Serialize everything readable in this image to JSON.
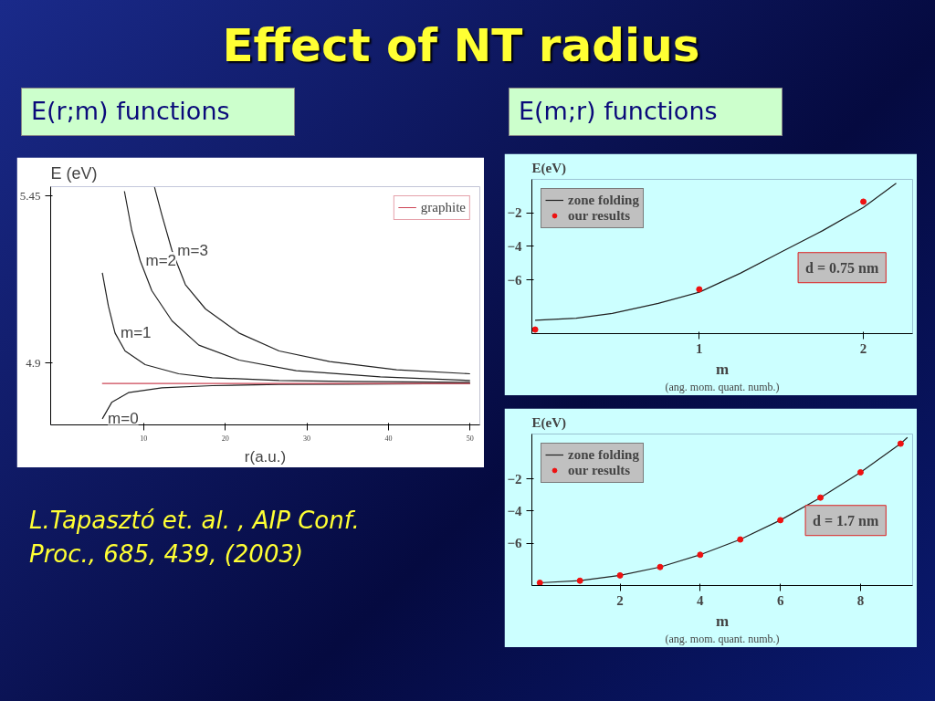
{
  "chart_data": [
    {
      "type": "line",
      "title": "Effect of NT radius",
      "subtitle": "E(r;m) functions",
      "xlabel": "r(a.u.)",
      "ylabel": "E (eV)",
      "xlim": [
        -1.4,
        51.2
      ],
      "ylim": [
        4.697,
        5.48
      ],
      "xticks": [
        10,
        20,
        30,
        40,
        50
      ],
      "yticks": [
        5.45,
        4.9
      ],
      "grid": false,
      "legend": "top right",
      "marker": "none",
      "line_style": "solid",
      "series": [
        {
          "color": "#222222",
          "x": [
            4.93,
            6.08,
            8.13,
            12.24,
            18.4,
            26.6,
            34.8,
            50
          ],
          "values": [
            4.717,
            4.771,
            4.803,
            4.819,
            4.826,
            4.83,
            4.831,
            4.833
          ]
        },
        {
          "color": "#222222",
          "x": [
            4.93,
            5.67,
            6.49,
            7.72,
            10.18,
            14.29,
            18.4,
            26.6,
            34.8,
            50
          ],
          "values": [
            5.197,
            5.088,
            4.999,
            4.94,
            4.895,
            4.865,
            4.852,
            4.843,
            4.84,
            4.837
          ]
        },
        {
          "color": "#222222",
          "x": [
            7.64,
            8.54,
            9.57,
            11.0,
            13.47,
            16.76,
            21.7,
            28.7,
            39.0,
            50
          ],
          "values": [
            5.465,
            5.336,
            5.237,
            5.138,
            5.039,
            4.959,
            4.91,
            4.875,
            4.855,
            4.843
          ]
        },
        {
          "color": "#222222",
          "x": [
            11.33,
            12.24,
            13.47,
            15.11,
            17.58,
            21.68,
            26.6,
            32.8,
            41.0,
            50
          ],
          "values": [
            5.478,
            5.386,
            5.27,
            5.158,
            5.078,
            4.999,
            4.94,
            4.905,
            4.878,
            4.865
          ]
        },
        {
          "name": "graphite",
          "color": "#cc4455",
          "x": [
            4.9,
            50
          ],
          "values": [
            4.833,
            4.833
          ]
        }
      ],
      "annotations": [
        {
          "text": "m=0",
          "x": 4.93,
          "y": 4.717
        },
        {
          "text": "m=1",
          "x": 6.49,
          "y": 4.999
        },
        {
          "text": "m=2",
          "x": 9.57,
          "y": 5.237
        },
        {
          "text": "m=3",
          "x": 13.47,
          "y": 5.27
        },
        "L.Tapasztó et. al. , AIP Conf. Proc., 685, 439, (2003)"
      ]
    },
    {
      "type": "line",
      "subtitle": "E(m;r) functions",
      "xlabel": "m",
      "ylabel": "E(eV)",
      "xlim": [
        -0.02,
        2.3
      ],
      "ylim": [
        -9.2,
        0
      ],
      "xticks": [
        1,
        2
      ],
      "yticks": [
        -2,
        -4,
        -6
      ],
      "grid": false,
      "legend": "top left",
      "line_style": "solid",
      "series": [
        {
          "name": "zone folding",
          "type": "line",
          "marker": "none",
          "color": "#222222",
          "x": [
            0,
            0.25,
            0.47,
            0.75,
            1,
            1.25,
            1.5,
            1.75,
            2,
            2.2
          ],
          "values": [
            -8.4,
            -8.28,
            -8,
            -7.4,
            -6.73,
            -5.6,
            -4.33,
            -3.07,
            -1.67,
            -0.23
          ]
        },
        {
          "name": "our results",
          "type": "scatter",
          "marker": "circle",
          "color": "#ee1111",
          "x": [
            0,
            1,
            2
          ],
          "values": [
            -8.96,
            -6.56,
            -1.33
          ]
        }
      ],
      "annotations": [
        "d = 0.75 nm",
        "(ang. mom. quant. numb.)"
      ]
    },
    {
      "type": "line",
      "xlabel": "m",
      "ylabel": "E(eV)",
      "xlim": [
        -0.2,
        9.3
      ],
      "ylim": [
        -8.63,
        0.78
      ],
      "xticks": [
        2,
        4,
        6,
        8
      ],
      "yticks": [
        -2,
        -4,
        -6
      ],
      "grid": false,
      "legend": "top left",
      "line_style": "solid",
      "series": [
        {
          "name": "zone folding",
          "type": "line",
          "marker": "none",
          "color": "#222222",
          "x": [
            0,
            1,
            2,
            3,
            4,
            5,
            6,
            7,
            8,
            9,
            9.17
          ],
          "values": [
            -8.46,
            -8.33,
            -8.0,
            -7.48,
            -6.72,
            -5.77,
            -4.57,
            -3.17,
            -1.6,
            0.18,
            0.57
          ]
        },
        {
          "name": "our results",
          "type": "scatter",
          "marker": "circle",
          "color": "#ee1111",
          "x": [
            0,
            1,
            2,
            3,
            4,
            5,
            6,
            7,
            8,
            9
          ],
          "values": [
            -8.46,
            -8.33,
            -8.0,
            -7.48,
            -6.72,
            -5.77,
            -4.57,
            -3.17,
            -1.6,
            0.18
          ]
        }
      ],
      "annotations": [
        "d = 1.7 nm",
        "(ang. mom. quant. numb.)"
      ]
    }
  ]
}
